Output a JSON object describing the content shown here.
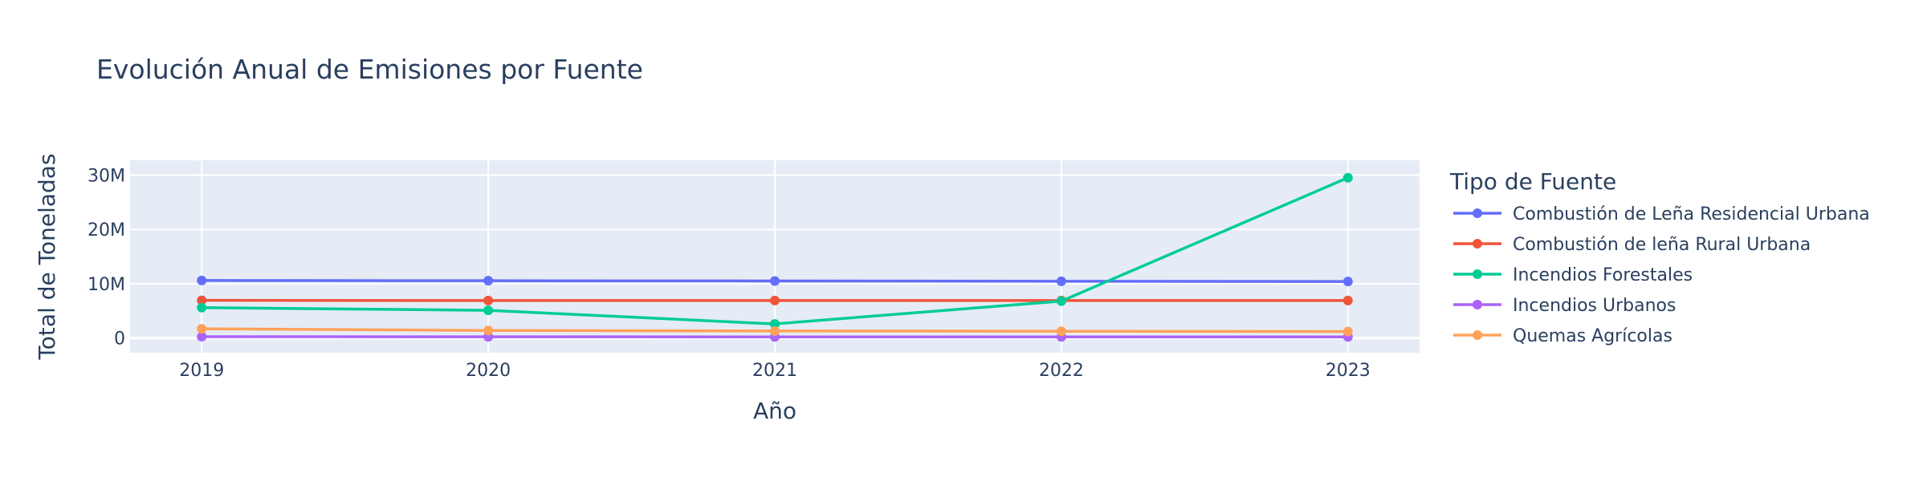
{
  "chart_data": {
    "type": "line",
    "title": "Evolución Anual de Emisiones por Fuente",
    "xlabel": "Año",
    "ylabel": "Total de Toneladas",
    "x": [
      2019,
      2020,
      2021,
      2022,
      2023
    ],
    "x_tick_labels": [
      "2019",
      "2020",
      "2021",
      "2022",
      "2023"
    ],
    "xlim": [
      2018.75,
      2023.25
    ],
    "ylim": [
      -2700000,
      32700000
    ],
    "y_ticks": [
      0,
      10000000,
      20000000,
      30000000
    ],
    "y_tick_labels": [
      "0",
      "10M",
      "20M",
      "30M"
    ],
    "grid": true,
    "plot_bgcolor": "#e5ecf6",
    "legend": {
      "title": "Tipo de Fuente",
      "placement": "right"
    },
    "series": [
      {
        "name": "Combustión de Leña Residencial Urbana",
        "color": "#636efa",
        "values": [
          10600000,
          10550000,
          10500000,
          10450000,
          10400000
        ]
      },
      {
        "name": "Combustión de leña Rural Urbana",
        "color": "#ef553b",
        "values": [
          6950000,
          6900000,
          6900000,
          6900000,
          6900000
        ]
      },
      {
        "name": "Incendios Forestales",
        "color": "#00cc96",
        "values": [
          5600000,
          5100000,
          2600000,
          6800000,
          29500000
        ]
      },
      {
        "name": "Incendios Urbanos",
        "color": "#ab63fa",
        "values": [
          250000,
          230000,
          220000,
          220000,
          220000
        ]
      },
      {
        "name": "Quemas Agrícolas",
        "color": "#ffa15a",
        "values": [
          1700000,
          1400000,
          1300000,
          1250000,
          1200000
        ]
      }
    ]
  }
}
